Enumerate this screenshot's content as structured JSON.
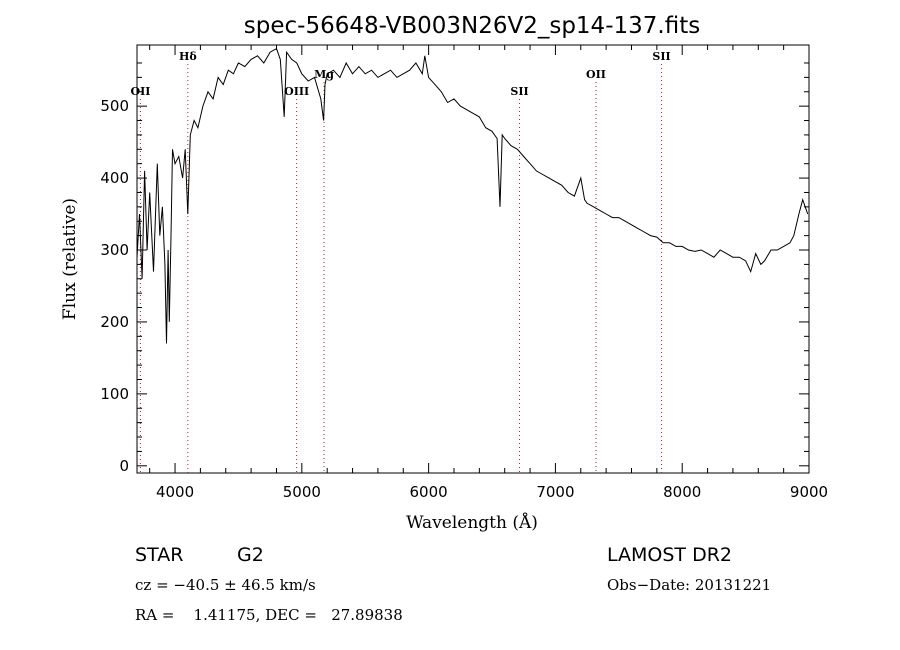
{
  "chart_data": {
    "type": "line",
    "title": "spec-56648-VB003N26V2_sp14-137.fits",
    "xlabel": "Wavelength (Å)",
    "ylabel": "Flux (relative)",
    "xlim": [
      3700,
      9000
    ],
    "ylim": [
      -10,
      585
    ],
    "grid": false,
    "x_ticks": [
      4000,
      5000,
      6000,
      7000,
      8000,
      9000
    ],
    "y_ticks": [
      0,
      100,
      200,
      300,
      400,
      500
    ],
    "series": [
      {
        "x": [
          3700,
          3720,
          3740,
          3760,
          3780,
          3800,
          3830,
          3860,
          3880,
          3900,
          3920,
          3933,
          3945,
          3955,
          3968,
          3980,
          4000,
          4030,
          4060,
          4080,
          4101,
          4120,
          4150,
          4180,
          4220,
          4260,
          4300,
          4340,
          4380,
          4420,
          4460,
          4500,
          4550,
          4600,
          4650,
          4700,
          4750,
          4800,
          4830,
          4861,
          4880,
          4920,
          4960,
          5000,
          5050,
          5100,
          5150,
          5172,
          5183,
          5200,
          5250,
          5300,
          5350,
          5400,
          5450,
          5500,
          5550,
          5600,
          5650,
          5700,
          5750,
          5800,
          5850,
          5900,
          5950,
          5970,
          6000,
          6050,
          6100,
          6150,
          6200,
          6250,
          6300,
          6350,
          6400,
          6450,
          6500,
          6540,
          6563,
          6580,
          6600,
          6650,
          6700,
          6750,
          6800,
          6850,
          6900,
          6950,
          7000,
          7050,
          7100,
          7150,
          7200,
          7230,
          7250,
          7300,
          7350,
          7400,
          7450,
          7500,
          7550,
          7600,
          7650,
          7700,
          7750,
          7800,
          7850,
          7900,
          7950,
          8000,
          8050,
          8100,
          8150,
          8200,
          8250,
          8300,
          8350,
          8400,
          8450,
          8500,
          8540,
          8580,
          8620,
          8650,
          8700,
          8750,
          8800,
          8850,
          8880,
          8920,
          8950,
          8970,
          8990
        ],
        "y": [
          290,
          350,
          260,
          410,
          300,
          380,
          270,
          420,
          320,
          360,
          280,
          170,
          300,
          200,
          320,
          440,
          420,
          430,
          400,
          440,
          350,
          460,
          480,
          470,
          500,
          520,
          510,
          540,
          530,
          550,
          545,
          560,
          555,
          565,
          570,
          560,
          575,
          580,
          565,
          485,
          575,
          565,
          560,
          545,
          535,
          540,
          510,
          480,
          530,
          545,
          550,
          540,
          560,
          545,
          555,
          545,
          550,
          540,
          545,
          550,
          540,
          545,
          550,
          560,
          545,
          570,
          540,
          530,
          520,
          505,
          510,
          500,
          495,
          490,
          485,
          470,
          465,
          455,
          360,
          460,
          455,
          445,
          440,
          430,
          420,
          410,
          405,
          400,
          395,
          390,
          380,
          375,
          400,
          370,
          365,
          360,
          355,
          350,
          345,
          345,
          340,
          335,
          330,
          325,
          320,
          318,
          310,
          310,
          305,
          305,
          300,
          298,
          300,
          295,
          290,
          300,
          295,
          290,
          290,
          285,
          270,
          295,
          280,
          285,
          300,
          300,
          305,
          310,
          320,
          350,
          370,
          360,
          350
        ]
      }
    ],
    "line_markers": [
      {
        "label": "OII",
        "x": 3727
      },
      {
        "label": "Hδ",
        "x": 4101
      },
      {
        "label": "OIII",
        "x": 4959
      },
      {
        "label": "Mg",
        "x": 5175
      },
      {
        "label": "SII",
        "x": 6717
      },
      {
        "label": "OII",
        "x": 7320
      },
      {
        "label": "SII",
        "x": 7837
      }
    ]
  },
  "info": {
    "object_class": "STAR",
    "subclass": "G2",
    "survey": "LAMOST DR2",
    "redshift": "cz = −40.5 ± 46.5 km/s",
    "obs_date": "Obs−Date: 20131221",
    "coords": "RA =    1.41175, DEC =   27.89838"
  },
  "colors": {
    "foreground": "#000000",
    "marker_line": "#b22222"
  }
}
